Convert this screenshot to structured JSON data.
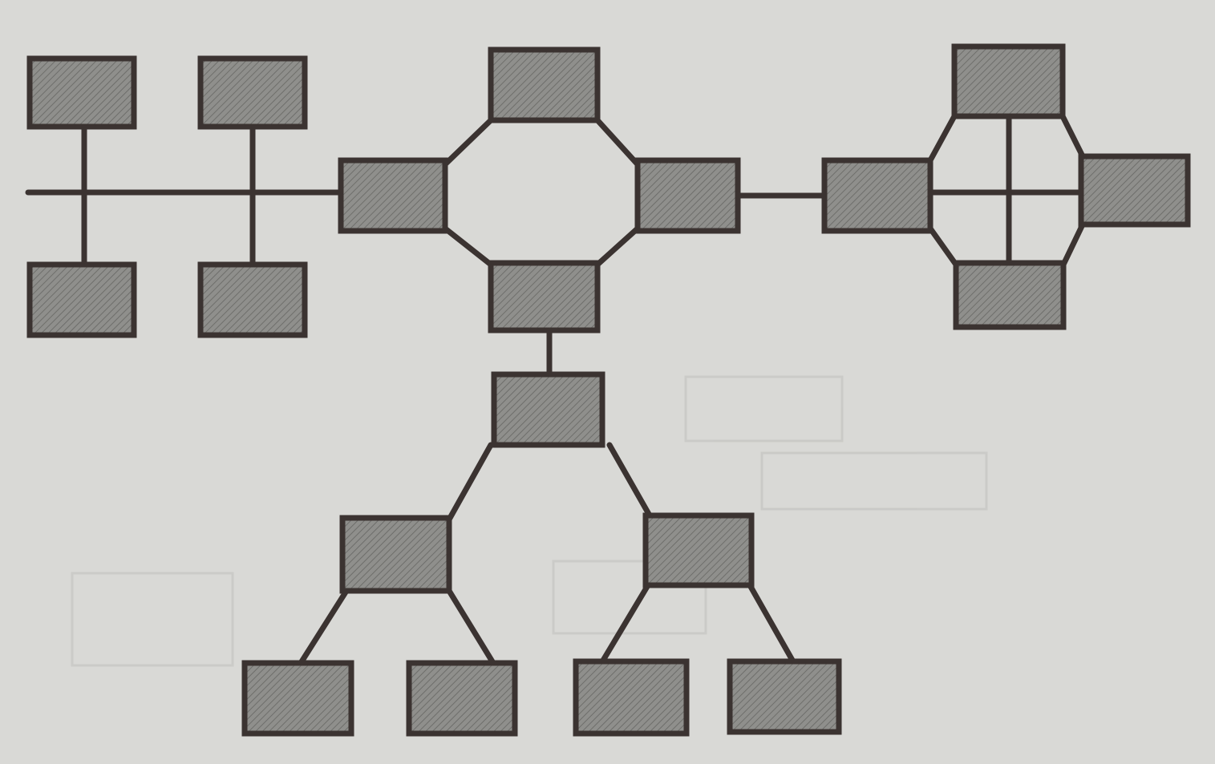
{
  "diagram": {
    "type": "hybrid-network-topology",
    "style": {
      "background": "#d9d9d6",
      "node_fill": "#8f8f8c",
      "node_hatch": "#6e6e6b",
      "stroke": "#3b3331"
    },
    "segments": [
      {
        "kind": "bus",
        "nodes": [
          "bus-top-1",
          "bus-top-2",
          "bus-bottom-1",
          "bus-bottom-2"
        ]
      },
      {
        "kind": "ring",
        "nodes": [
          "ring-left",
          "ring-top",
          "ring-right",
          "ring-bottom"
        ]
      },
      {
        "kind": "mesh",
        "nodes": [
          "mesh-left",
          "mesh-top",
          "mesh-right",
          "mesh-bottom"
        ]
      },
      {
        "kind": "tree",
        "nodes": [
          "tree-root",
          "tree-mid-left",
          "tree-mid-right",
          "tree-leaf-1",
          "tree-leaf-2",
          "tree-leaf-3",
          "tree-leaf-4"
        ]
      }
    ]
  }
}
